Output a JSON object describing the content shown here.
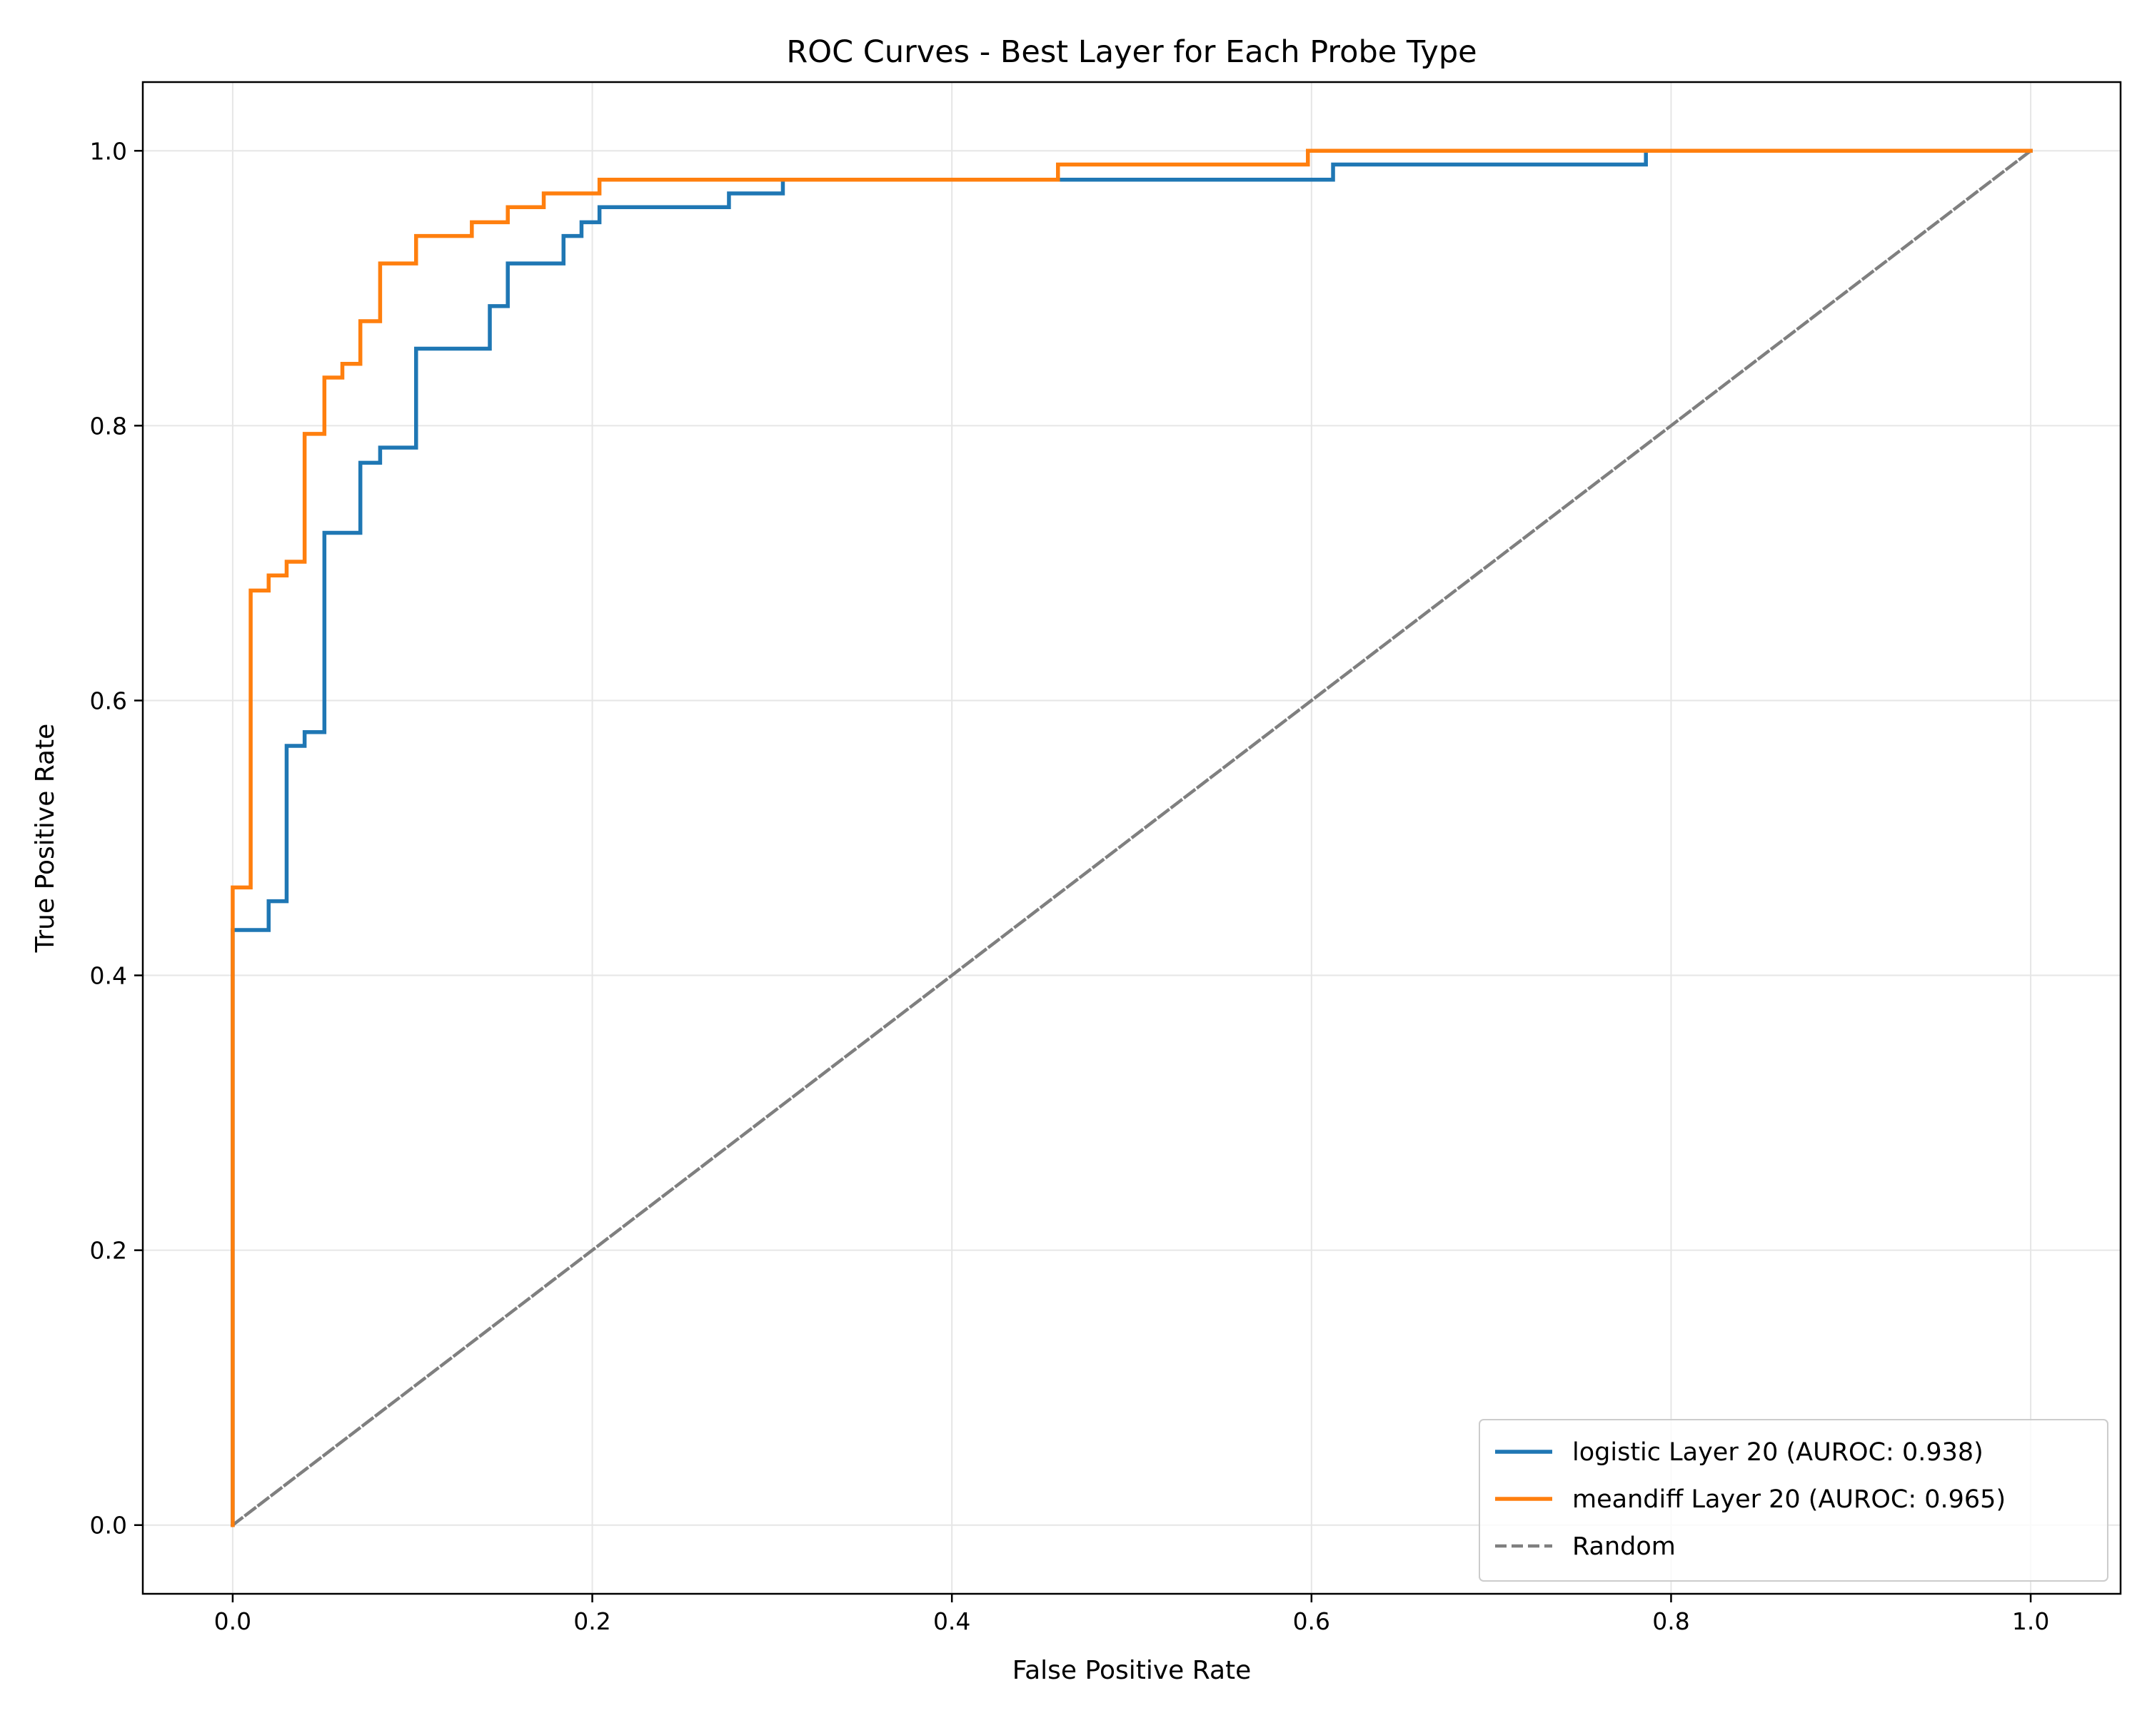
{
  "chart_data": {
    "type": "line",
    "title": "ROC Curves - Best Layer for Each Probe Type",
    "xlabel": "False Positive Rate",
    "ylabel": "True Positive Rate",
    "xlim": [
      -0.05,
      1.05
    ],
    "ylim": [
      -0.05,
      1.05
    ],
    "xticks": [
      0.0,
      0.2,
      0.4,
      0.6,
      0.8,
      1.0
    ],
    "yticks": [
      0.0,
      0.2,
      0.4,
      0.6,
      0.8,
      1.0
    ],
    "xtick_labels": [
      "0.0",
      "0.2",
      "0.4",
      "0.6",
      "0.8",
      "1.0"
    ],
    "ytick_labels": [
      "0.0",
      "0.2",
      "0.4",
      "0.6",
      "0.8",
      "1.0"
    ],
    "grid": true,
    "legend_position": "lower right",
    "series": [
      {
        "name": "logistic Layer 20 (AUROC: 0.938)",
        "color": "#1f77b4",
        "style": "solid",
        "x": [
          0.0,
          0.0,
          0.02,
          0.02,
          0.03,
          0.03,
          0.04,
          0.04,
          0.051,
          0.051,
          0.071,
          0.071,
          0.082,
          0.082,
          0.102,
          0.102,
          0.143,
          0.143,
          0.153,
          0.153,
          0.184,
          0.184,
          0.194,
          0.194,
          0.204,
          0.204,
          0.276,
          0.276,
          0.306,
          0.306,
          0.347,
          0.347,
          0.459,
          0.459,
          0.5,
          0.5,
          0.612,
          0.612,
          0.786,
          0.786,
          1.0
        ],
        "y": [
          0.0,
          0.433,
          0.433,
          0.454,
          0.454,
          0.567,
          0.567,
          0.577,
          0.577,
          0.722,
          0.722,
          0.773,
          0.773,
          0.784,
          0.784,
          0.856,
          0.856,
          0.887,
          0.887,
          0.918,
          0.918,
          0.938,
          0.938,
          0.948,
          0.948,
          0.959,
          0.959,
          0.969,
          0.969,
          0.979,
          0.979,
          0.979,
          0.979,
          0.979,
          0.979,
          0.979,
          0.979,
          0.99,
          0.99,
          1.0,
          1.0
        ]
      },
      {
        "name": "meandiff Layer 20 (AUROC: 0.965)",
        "color": "#ff7f0e",
        "style": "solid",
        "x": [
          0.0,
          0.0,
          0.01,
          0.01,
          0.02,
          0.02,
          0.03,
          0.03,
          0.04,
          0.04,
          0.051,
          0.051,
          0.061,
          0.061,
          0.071,
          0.071,
          0.082,
          0.082,
          0.102,
          0.102,
          0.133,
          0.133,
          0.153,
          0.153,
          0.173,
          0.173,
          0.204,
          0.204,
          0.459,
          0.459,
          0.598,
          0.598,
          1.0
        ],
        "y": [
          0.0,
          0.464,
          0.464,
          0.68,
          0.68,
          0.691,
          0.691,
          0.701,
          0.701,
          0.794,
          0.794,
          0.835,
          0.835,
          0.845,
          0.845,
          0.876,
          0.876,
          0.918,
          0.918,
          0.938,
          0.938,
          0.948,
          0.948,
          0.959,
          0.959,
          0.969,
          0.969,
          0.979,
          0.979,
          0.99,
          0.99,
          1.0,
          1.0
        ]
      },
      {
        "name": "Random",
        "color": "#7f7f7f",
        "style": "dashed",
        "x": [
          0.0,
          1.0
        ],
        "y": [
          0.0,
          1.0
        ]
      }
    ]
  }
}
